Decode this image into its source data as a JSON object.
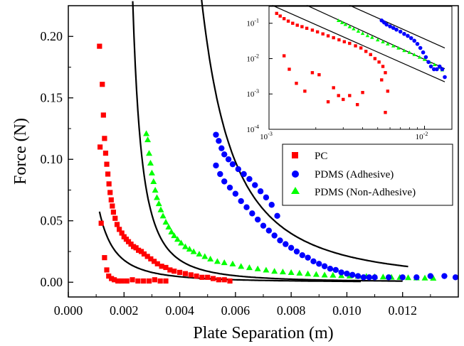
{
  "chart_data": [
    {
      "type": "scatter",
      "title": "",
      "xlabel": "Plate Separation (m)",
      "ylabel": "Force (N)",
      "xlim": [
        0.0,
        0.014
      ],
      "ylim": [
        -0.012,
        0.225
      ],
      "x_ticks": [
        "0.000",
        "0.002",
        "0.004",
        "0.006",
        "0.008",
        "0.010",
        "0.012"
      ],
      "y_ticks": [
        "0.00",
        "0.05",
        "0.10",
        "0.15",
        "0.20"
      ],
      "legend_position": "right-middle",
      "grid": false,
      "series": [
        {
          "name": "PC",
          "color": "#ff0000",
          "marker": "square",
          "x": [
            0.00112,
            0.00114,
            0.00118,
            0.00122,
            0.00126,
            0.0013,
            0.00134,
            0.00138,
            0.00142,
            0.00146,
            0.0015,
            0.00154,
            0.00158,
            0.00162,
            0.00168,
            0.00175,
            0.00183,
            0.00192,
            0.002,
            0.00208,
            0.00216,
            0.00225,
            0.00234,
            0.00243,
            0.00252,
            0.00262,
            0.00272,
            0.00284,
            0.00296,
            0.00308,
            0.0032,
            0.00335,
            0.0035,
            0.00365,
            0.0038,
            0.004,
            0.0042,
            0.0044,
            0.0046,
            0.0048,
            0.005,
            0.0052,
            0.0054,
            0.0056,
            0.0058,
            0.0013,
            0.00138,
            0.00145,
            0.00155,
            0.00165,
            0.00178,
            0.00192,
            0.0021,
            0.0023,
            0.0025,
            0.0027,
            0.0029,
            0.0031,
            0.0033,
            0.0035
          ],
          "y": [
            0.192,
            0.11,
            0.048,
            0.161,
            0.136,
            0.117,
            0.105,
            0.096,
            0.088,
            0.08,
            0.073,
            0.067,
            0.062,
            0.057,
            0.052,
            0.047,
            0.043,
            0.04,
            0.037,
            0.035,
            0.033,
            0.031,
            0.029,
            0.028,
            0.026,
            0.025,
            0.023,
            0.021,
            0.019,
            0.017,
            0.015,
            0.013,
            0.012,
            0.01,
            0.009,
            0.008,
            0.007,
            0.006,
            0.005,
            0.004,
            0.004,
            0.003,
            0.002,
            0.002,
            0.001,
            0.02,
            0.01,
            0.005,
            0.003,
            0.002,
            0.001,
            0.001,
            0.001,
            0.002,
            0.001,
            0.001,
            0.001,
            0.002,
            0.001,
            0.001
          ]
        },
        {
          "name": "PDMS (Adhesive)",
          "color": "#0000ff",
          "marker": "circle",
          "x": [
            0.0053,
            0.0054,
            0.0055,
            0.0056,
            0.00575,
            0.0059,
            0.0061,
            0.0063,
            0.0065,
            0.0067,
            0.0069,
            0.0071,
            0.0073,
            0.0075,
            0.0053,
            0.00545,
            0.0056,
            0.0058,
            0.006,
            0.0062,
            0.0064,
            0.0066,
            0.0068,
            0.007,
            0.0072,
            0.0074,
            0.0076,
            0.0078,
            0.008,
            0.0082,
            0.0084,
            0.0086,
            0.0088,
            0.009,
            0.0092,
            0.0094,
            0.0096,
            0.0098,
            0.01,
            0.0102,
            0.0104,
            0.0106,
            0.0108,
            0.011,
            0.0115,
            0.012,
            0.0125,
            0.013,
            0.0135,
            0.0139
          ],
          "y": [
            0.12,
            0.115,
            0.109,
            0.104,
            0.1,
            0.096,
            0.092,
            0.088,
            0.084,
            0.079,
            0.074,
            0.069,
            0.063,
            0.054,
            0.095,
            0.088,
            0.082,
            0.077,
            0.072,
            0.066,
            0.061,
            0.056,
            0.051,
            0.046,
            0.042,
            0.038,
            0.034,
            0.031,
            0.028,
            0.025,
            0.022,
            0.02,
            0.017,
            0.015,
            0.013,
            0.011,
            0.01,
            0.008,
            0.007,
            0.006,
            0.005,
            0.004,
            0.004,
            0.004,
            0.004,
            0.004,
            0.004,
            0.005,
            0.005,
            0.004
          ]
        },
        {
          "name": "PDMS (Non-Adhesive)",
          "color": "#00ff00",
          "marker": "triangle",
          "x": [
            0.0028,
            0.00285,
            0.0029,
            0.00295,
            0.003,
            0.00306,
            0.00312,
            0.00318,
            0.00325,
            0.00332,
            0.0034,
            0.0035,
            0.0036,
            0.0037,
            0.0038,
            0.00392,
            0.00405,
            0.0042,
            0.00435,
            0.0045,
            0.0047,
            0.0049,
            0.0051,
            0.00535,
            0.0056,
            0.0059,
            0.0062,
            0.0065,
            0.0068,
            0.0071,
            0.0074,
            0.0077,
            0.008,
            0.0083,
            0.0086,
            0.0089,
            0.0092,
            0.0095,
            0.0098,
            0.0101,
            0.0104,
            0.0107,
            0.011,
            0.0113,
            0.0116,
            0.0119,
            0.0122,
            0.0125,
            0.0128,
            0.0131
          ],
          "y": [
            0.121,
            0.116,
            0.105,
            0.097,
            0.089,
            0.082,
            0.075,
            0.069,
            0.064,
            0.059,
            0.054,
            0.049,
            0.045,
            0.041,
            0.038,
            0.035,
            0.032,
            0.029,
            0.027,
            0.025,
            0.023,
            0.021,
            0.019,
            0.017,
            0.016,
            0.015,
            0.013,
            0.012,
            0.011,
            0.01,
            0.009,
            0.0085,
            0.008,
            0.0075,
            0.007,
            0.0065,
            0.006,
            0.0058,
            0.0055,
            0.0052,
            0.005,
            0.0048,
            0.0046,
            0.0044,
            0.0042,
            0.004,
            0.0038,
            0.0036,
            0.0035,
            0.0034
          ]
        }
      ],
      "fit_curves": [
        {
          "A": 7.2e-08,
          "x0": 0.0,
          "x_range": [
            0.00112,
            0.0105
          ],
          "color": "#000000"
        },
        {
          "A": 1e-07,
          "x0": 0.00165,
          "x_range": [
            0.00185,
            0.012
          ],
          "color": "#000000"
        },
        {
          "A": 1.2e-06,
          "x0": 0.0025,
          "x_range": [
            0.00385,
            0.0122
          ],
          "color": "#000000"
        }
      ]
    },
    {
      "type": "scatter",
      "title": "",
      "log_x": true,
      "log_y": true,
      "xlim": [
        0.001,
        0.015
      ],
      "ylim": [
        0.0001,
        0.3
      ],
      "x_ticks": [
        {
          "base": "10",
          "exp": "-3"
        },
        {
          "base": "10",
          "exp": "-2"
        }
      ],
      "y_ticks": [
        {
          "base": "10",
          "exp": "-1"
        },
        {
          "base": "10",
          "exp": "-2"
        },
        {
          "base": "10",
          "exp": "-3"
        },
        {
          "base": "10",
          "exp": "-4"
        }
      ],
      "reference_lines": [
        {
          "x": [
            0.00105,
            0.0135
          ],
          "y": [
            0.32,
            0.0022
          ],
          "color": "#000000"
        },
        {
          "x": [
            0.00175,
            0.0135
          ],
          "y": [
            0.32,
            0.0052
          ],
          "color": "#000000"
        },
        {
          "x": [
            0.0033,
            0.0135
          ],
          "y": [
            0.32,
            0.02
          ],
          "color": "#000000"
        }
      ],
      "series": [
        {
          "name": "PC",
          "color": "#ff0000",
          "marker": "square",
          "x": [
            0.00112,
            0.00118,
            0.00125,
            0.00133,
            0.00142,
            0.00152,
            0.00163,
            0.00175,
            0.0019,
            0.00205,
            0.00222,
            0.0024,
            0.0026,
            0.00282,
            0.00305,
            0.0033,
            0.0036,
            0.0039,
            0.0042,
            0.0045,
            0.0048,
            0.0051,
            0.0054,
            0.0056,
            0.0058,
            0.00125,
            0.00135,
            0.0015,
            0.0017,
            0.0019,
            0.0021,
            0.0024,
            0.0026,
            0.0028,
            0.003,
            0.0033,
            0.0037,
            0.004,
            0.0053,
            0.0056
          ],
          "y": [
            0.19,
            0.16,
            0.135,
            0.115,
            0.1,
            0.088,
            0.08,
            0.072,
            0.064,
            0.057,
            0.05,
            0.044,
            0.039,
            0.034,
            0.03,
            0.027,
            0.023,
            0.02,
            0.016,
            0.013,
            0.01,
            0.008,
            0.006,
            0.004,
            0.0012,
            0.012,
            0.005,
            0.002,
            0.0012,
            0.004,
            0.0035,
            0.0006,
            0.0015,
            0.0009,
            0.0007,
            0.0009,
            0.0005,
            0.0011,
            0.0025,
            0.0003
          ]
        },
        {
          "name": "PDMS (Adhesive)",
          "color": "#0000ff",
          "marker": "circle",
          "x": [
            0.0053,
            0.0055,
            0.0057,
            0.006,
            0.0063,
            0.0066,
            0.007,
            0.0074,
            0.0078,
            0.0082,
            0.0086,
            0.009,
            0.0094,
            0.0098,
            0.0102,
            0.0106,
            0.011,
            0.0115,
            0.012,
            0.0125,
            0.013,
            0.0135
          ],
          "y": [
            0.12,
            0.105,
            0.092,
            0.082,
            0.074,
            0.066,
            0.058,
            0.05,
            0.044,
            0.038,
            0.032,
            0.026,
            0.02,
            0.015,
            0.011,
            0.008,
            0.006,
            0.005,
            0.005,
            0.006,
            0.005,
            0.003
          ]
        },
        {
          "name": "PDMS (Non-Adhesive)",
          "color": "#00ff00",
          "marker": "triangle",
          "x": [
            0.0028,
            0.00295,
            0.0031,
            0.0033,
            0.0035,
            0.00375,
            0.004,
            0.0043,
            0.0046,
            0.005,
            0.0054,
            0.0058,
            0.0063,
            0.0068,
            0.0074,
            0.008,
            0.0086,
            0.0093,
            0.01,
            0.0108,
            0.0116,
            0.0124,
            0.013
          ],
          "y": [
            0.12,
            0.105,
            0.093,
            0.08,
            0.07,
            0.06,
            0.052,
            0.045,
            0.04,
            0.034,
            0.03,
            0.026,
            0.023,
            0.02,
            0.017,
            0.015,
            0.013,
            0.011,
            0.0095,
            0.008,
            0.0068,
            0.0057,
            0.0048
          ]
        }
      ]
    }
  ]
}
